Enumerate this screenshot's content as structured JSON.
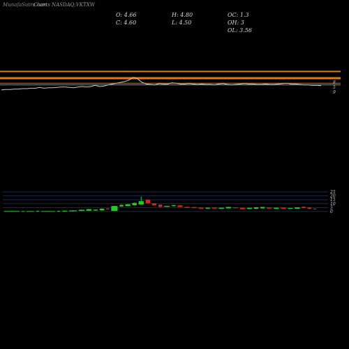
{
  "header": {
    "watermark": "MunafaSutra.com",
    "title": "Charts NASDAQ:VKTXW",
    "ohlc": {
      "open": "O: 4.66",
      "high": "H: 4.80",
      "oc": "OC: 1.3",
      "close": "C: 4.60",
      "low": "L: 4.50",
      "oh": "OH: 3",
      "ol": "OL: 3.56"
    }
  },
  "price_axis_labels": [
    "8",
    "5",
    "9"
  ],
  "colors": {
    "background": "#000000",
    "up": "#22cc22",
    "down": "#dd2222",
    "band_orange": "#e07a10",
    "price_line": "#f3f3f3",
    "grid": "#1d2a4a",
    "axis_text": "#cccccc"
  },
  "chart_data": {
    "type": "candlestick+volume",
    "title": "Charts NASDAQ:VKTXW",
    "price": {
      "axis_labels": [
        "8",
        "5",
        "9"
      ],
      "ylim": [
        0,
        10
      ],
      "bands": [
        9.6,
        8.0,
        6.8,
        6.4
      ],
      "close": [
        5.2,
        5.3,
        5.3,
        5.4,
        5.4,
        5.5,
        5.5,
        5.6,
        5.6,
        5.8,
        5.6,
        5.7,
        5.7,
        5.8,
        5.9,
        5.9,
        5.8,
        5.7,
        5.9,
        6.0,
        5.9,
        6.0,
        6.3,
        6.0,
        6.1,
        6.4,
        6.6,
        6.8,
        7.0,
        7.2,
        7.6,
        8.2,
        7.8,
        7.0,
        6.6,
        6.5,
        6.4,
        6.7,
        6.6,
        6.6,
        6.9,
        6.8,
        6.6,
        6.6,
        6.7,
        6.6,
        6.5,
        6.6,
        6.5,
        6.5,
        6.4,
        6.6,
        6.7,
        6.5,
        6.4,
        6.5,
        6.6,
        6.7,
        6.6,
        6.6,
        6.5,
        6.5,
        6.6,
        6.5,
        6.5,
        6.6,
        6.7,
        6.8,
        6.6,
        6.6,
        6.5,
        6.4,
        6.4,
        6.3,
        6.3,
        6.2
      ]
    },
    "volume": {
      "ylabels": [
        "25",
        "20",
        "15",
        "10",
        "5",
        "0"
      ],
      "ylim": [
        0,
        25
      ],
      "bars": [
        {
          "type": "candle",
          "color": "green",
          "o": 0.1,
          "c": 0.6,
          "h": 0.8,
          "l": 0,
          "w": 24
        },
        {
          "type": "candle",
          "color": "green",
          "o": 0.1,
          "c": 0.5,
          "h": 0.7,
          "l": 0,
          "w": 5
        },
        {
          "type": "candle",
          "color": "green",
          "o": 0.1,
          "c": 0.5,
          "h": 0.7,
          "l": 0,
          "w": 12
        },
        {
          "type": "candle",
          "color": "green",
          "o": 0.2,
          "c": 0.7,
          "h": 0.9,
          "l": 0,
          "w": 5
        },
        {
          "type": "candle",
          "color": "green",
          "o": 0.1,
          "c": 0.5,
          "h": 0.7,
          "l": 0,
          "w": 22
        },
        {
          "type": "candle",
          "color": "green",
          "o": 0.2,
          "c": 0.7,
          "h": 0.9,
          "l": 0,
          "w": 5
        },
        {
          "type": "candle",
          "color": "green",
          "o": 0.3,
          "c": 1.0,
          "h": 1.2,
          "l": 0.1,
          "w": 8
        },
        {
          "type": "candle",
          "color": "green",
          "o": 0.4,
          "c": 1.4,
          "h": 1.6,
          "l": 0.2,
          "w": 12
        },
        {
          "type": "candle",
          "color": "green",
          "o": 0.8,
          "c": 2.2,
          "h": 2.4,
          "l": 0.6,
          "w": 9
        },
        {
          "type": "candle",
          "color": "green",
          "o": 1.0,
          "c": 3.0,
          "h": 3.3,
          "l": 0.8,
          "w": 8
        },
        {
          "type": "candle",
          "color": "green",
          "o": 1.2,
          "c": 2.4,
          "h": 2.8,
          "l": 1.0,
          "w": 7
        },
        {
          "type": "candle",
          "color": "green",
          "o": 1.4,
          "c": 3.6,
          "h": 4.0,
          "l": 1.2,
          "w": 7
        },
        {
          "type": "candle",
          "color": "red",
          "o": 3.8,
          "c": 2.8,
          "h": 4.2,
          "l": 2.6,
          "w": 5
        },
        {
          "type": "candle",
          "color": "green",
          "o": 0.8,
          "c": 7.0,
          "h": 7.5,
          "l": 0.6,
          "w": 10
        },
        {
          "type": "candle",
          "color": "green",
          "o": 6.4,
          "c": 8.4,
          "h": 9.2,
          "l": 6.0,
          "w": 6
        },
        {
          "type": "candle",
          "color": "green",
          "o": 7.0,
          "c": 9.2,
          "h": 9.6,
          "l": 6.8,
          "w": 8
        },
        {
          "type": "candle",
          "color": "green",
          "o": 8.0,
          "c": 11.0,
          "h": 11.4,
          "l": 7.6,
          "w": 7
        },
        {
          "type": "candle",
          "color": "green",
          "o": 9.0,
          "c": 13.2,
          "h": 19.0,
          "l": 8.8,
          "w": 8
        },
        {
          "type": "candle",
          "color": "red",
          "o": 15.0,
          "c": 10.6,
          "h": 15.6,
          "l": 10.2,
          "w": 7
        },
        {
          "type": "candle",
          "color": "red",
          "o": 10.4,
          "c": 7.8,
          "h": 10.8,
          "l": 7.6,
          "w": 7
        },
        {
          "type": "candle",
          "color": "red",
          "o": 8.8,
          "c": 5.8,
          "h": 9.0,
          "l": 5.6,
          "w": 6
        },
        {
          "type": "candle",
          "color": "green",
          "o": 6.0,
          "c": 7.2,
          "h": 7.4,
          "l": 5.8,
          "w": 9
        },
        {
          "type": "candle",
          "color": "green",
          "o": 7.0,
          "c": 8.2,
          "h": 8.4,
          "l": 6.8,
          "w": 6
        },
        {
          "type": "candle",
          "color": "red",
          "o": 7.8,
          "c": 5.8,
          "h": 8.0,
          "l": 5.6,
          "w": 8
        },
        {
          "type": "candle",
          "color": "red",
          "o": 5.8,
          "c": 4.6,
          "h": 6.0,
          "l": 4.4,
          "w": 8
        },
        {
          "type": "candle",
          "color": "red",
          "o": 5.6,
          "c": 4.4,
          "h": 5.8,
          "l": 4.2,
          "w": 8
        },
        {
          "type": "candle",
          "color": "red",
          "o": 5.0,
          "c": 3.8,
          "h": 5.2,
          "l": 3.6,
          "w": 8
        },
        {
          "type": "candle",
          "color": "green",
          "o": 3.6,
          "c": 4.8,
          "h": 5.0,
          "l": 3.4,
          "w": 7
        },
        {
          "type": "candle",
          "color": "red",
          "o": 5.0,
          "c": 3.8,
          "h": 5.2,
          "l": 3.6,
          "w": 8
        },
        {
          "type": "candle",
          "color": "green",
          "o": 3.6,
          "c": 4.8,
          "h": 5.0,
          "l": 3.4,
          "w": 8
        },
        {
          "type": "candle",
          "color": "green",
          "o": 4.0,
          "c": 5.8,
          "h": 6.0,
          "l": 3.8,
          "w": 8
        },
        {
          "type": "candle",
          "color": "red",
          "o": 5.2,
          "c": 4.2,
          "h": 5.4,
          "l": 4.0,
          "w": 8
        },
        {
          "type": "candle",
          "color": "red",
          "o": 4.6,
          "c": 3.0,
          "h": 4.8,
          "l": 2.8,
          "w": 8
        },
        {
          "type": "candle",
          "color": "green",
          "o": 3.2,
          "c": 4.6,
          "h": 4.8,
          "l": 3.0,
          "w": 8
        },
        {
          "type": "candle",
          "color": "green",
          "o": 3.6,
          "c": 5.4,
          "h": 5.6,
          "l": 3.4,
          "w": 7
        },
        {
          "type": "candle",
          "color": "green",
          "o": 4.0,
          "c": 5.8,
          "h": 6.0,
          "l": 3.8,
          "w": 7
        },
        {
          "type": "candle",
          "color": "red",
          "o": 5.0,
          "c": 3.8,
          "h": 5.2,
          "l": 3.6,
          "w": 8
        },
        {
          "type": "candle",
          "color": "green",
          "o": 3.4,
          "c": 4.8,
          "h": 5.0,
          "l": 3.2,
          "w": 8
        },
        {
          "type": "candle",
          "color": "red",
          "o": 5.0,
          "c": 3.6,
          "h": 5.2,
          "l": 3.4,
          "w": 8
        },
        {
          "type": "candle",
          "color": "green",
          "o": 3.6,
          "c": 4.4,
          "h": 4.6,
          "l": 3.4,
          "w": 8
        },
        {
          "type": "candle",
          "color": "green",
          "o": 3.6,
          "c": 5.2,
          "h": 5.4,
          "l": 3.4,
          "w": 8
        },
        {
          "type": "candle",
          "color": "red",
          "o": 6.0,
          "c": 4.4,
          "h": 6.4,
          "l": 4.2,
          "w": 6
        },
        {
          "type": "candle",
          "color": "red",
          "o": 5.2,
          "c": 3.6,
          "h": 5.4,
          "l": 3.4,
          "w": 6
        },
        {
          "type": "candle",
          "color": "red",
          "o": 3.6,
          "c": 3.0,
          "h": 3.8,
          "l": 2.8,
          "w": 5
        }
      ]
    }
  }
}
